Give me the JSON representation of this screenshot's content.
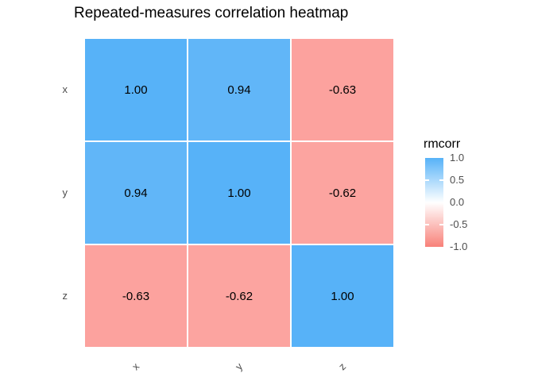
{
  "title": "Repeated-measures correlation heatmap",
  "axis": {
    "row_labels": [
      "x",
      "y",
      "z"
    ],
    "col_labels": [
      "x",
      "y",
      "z"
    ]
  },
  "cells": [
    [
      {
        "label": "1.00",
        "color": "#57B2F8"
      },
      {
        "label": "0.94",
        "color": "#61B6F8"
      },
      {
        "label": "-0.63",
        "color": "#FCA29E"
      }
    ],
    [
      {
        "label": "0.94",
        "color": "#61B6F8"
      },
      {
        "label": "1.00",
        "color": "#57B2F8"
      },
      {
        "label": "-0.62",
        "color": "#FCA4A0"
      }
    ],
    [
      {
        "label": "-0.63",
        "color": "#FCA29E"
      },
      {
        "label": "-0.62",
        "color": "#FCA4A0"
      },
      {
        "label": "1.00",
        "color": "#57B2F8"
      }
    ]
  ],
  "legend": {
    "title": "rmcorr",
    "tick_labels": [
      "1.0",
      "0.5",
      "0.0",
      "-0.5",
      "-1.0"
    ],
    "gradient_top": "#57B2F8",
    "gradient_mid": "#FFFFFF",
    "gradient_bottom": "#F88179"
  },
  "colors": {
    "background": "#FFFFFF",
    "axis_text": "#4D4D4D",
    "cell_text": "#000000",
    "title_text": "#000000"
  },
  "chart_data": {
    "type": "heatmap",
    "title": "Repeated-measures correlation heatmap",
    "x_categories": [
      "x",
      "y",
      "z"
    ],
    "y_categories": [
      "x",
      "y",
      "z"
    ],
    "values": [
      [
        1.0,
        0.94,
        -0.63
      ],
      [
        0.94,
        1.0,
        -0.62
      ],
      [
        -0.63,
        -0.62,
        1.0
      ]
    ],
    "cell_label_format": "two_decimals",
    "legend_title": "rmcorr",
    "legend_ticks": [
      1.0,
      0.5,
      0.0,
      -0.5,
      -1.0
    ],
    "color_limits": [
      -1,
      1
    ],
    "colorscale": {
      "low": "#F8766D",
      "mid": "#FFFFFF",
      "high": "#56B1F7"
    },
    "legend_position": "right",
    "grid": false,
    "x_tick_angle_deg": 45
  }
}
